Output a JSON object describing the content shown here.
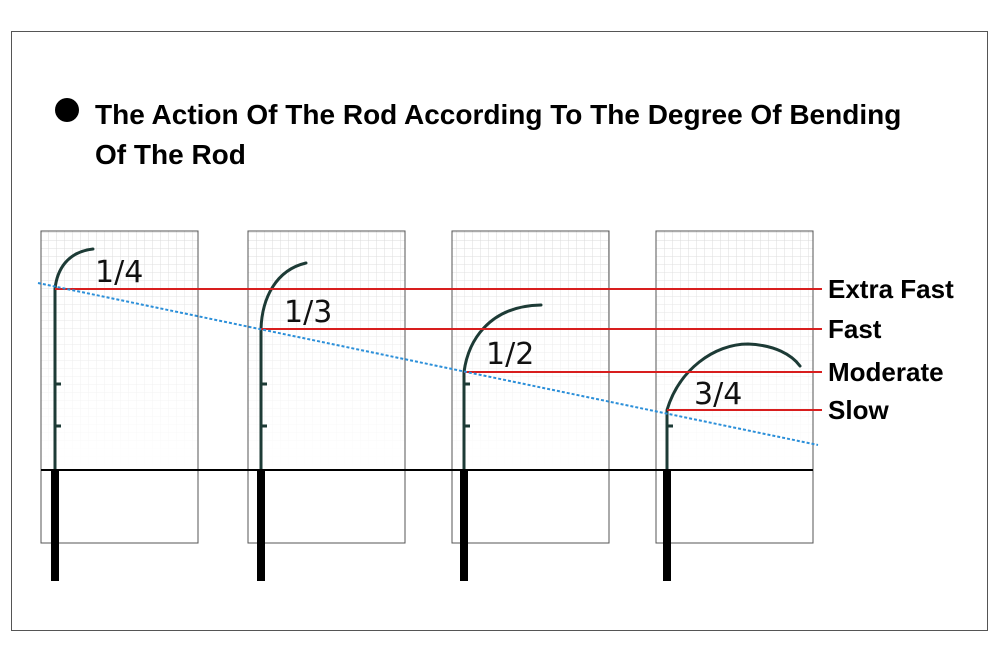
{
  "title": "The Action Of The Rod According To The Degree Of Bending Of The Rod",
  "colors": {
    "grid": "#d9d9d9",
    "panel_border": "#555555",
    "rod_blank": "#1d3b36",
    "rod_handle": "#000000",
    "level_line": "#d81e1e",
    "diagonal": "#2b8fd9",
    "ground": "#000000"
  },
  "actions": [
    {
      "name": "Extra Fast",
      "fraction": "1/4"
    },
    {
      "name": "Fast",
      "fraction": "1/3"
    },
    {
      "name": "Moderate",
      "fraction": "1/2"
    },
    {
      "name": "Slow",
      "fraction": "3/4"
    }
  ]
}
